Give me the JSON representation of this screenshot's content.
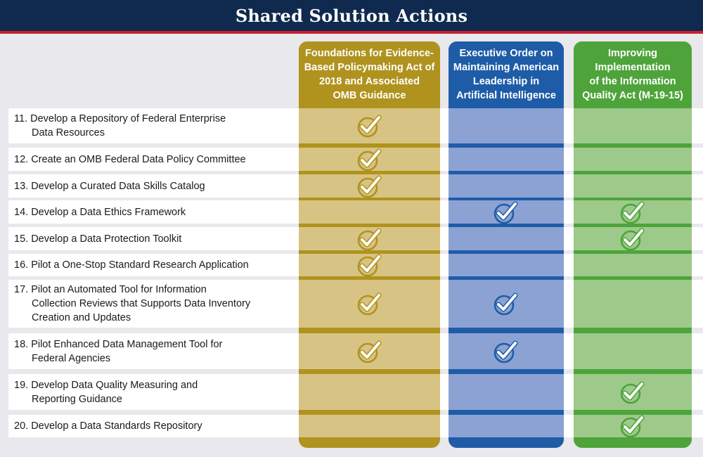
{
  "title": "Shared Solution Actions",
  "colors": {
    "header_bg": "#0f2a4e",
    "header_rule": "#c8202f",
    "page_bg": "#e9e8ec",
    "gold_dark": "#b0931e",
    "gold_light": "#d7c484",
    "blue_dark": "#1f5ca8",
    "blue_light": "#8ba2d3",
    "green_dark": "#4ea43a",
    "green_light": "#9dca8b"
  },
  "columns": [
    {
      "id": "evidence-act",
      "title": "Foundations for Evidence-Based Policymaking Act of 2018 and Associated OMB Guidance",
      "title_lines": [
        "Foundations for Evidence-",
        "Based Policymaking Act of",
        "2018 and Associated",
        "OMB Guidance"
      ]
    },
    {
      "id": "ai-eo",
      "title": "Executive Order on Maintaining American Leadership in Artificial Intelligence",
      "title_lines": [
        "Executive Order on",
        "Maintaining American",
        "Leadership in",
        "Artificial Intelligence"
      ]
    },
    {
      "id": "info-quality-act",
      "title": "Improving Implementation of the Information Quality Act (M-19-15)",
      "title_lines": [
        "Improving",
        "Implementation",
        "of the Information",
        "Quality Act (M-19-15)"
      ]
    }
  ],
  "rows": [
    {
      "number": "11.",
      "lines": [
        "Develop a Repository of Federal Enterprise",
        "Data Resources"
      ],
      "checks": [
        true,
        false,
        false
      ]
    },
    {
      "number": "12.",
      "lines": [
        "Create an OMB Federal Data Policy Committee"
      ],
      "checks": [
        true,
        false,
        false
      ]
    },
    {
      "number": "13.",
      "lines": [
        "Develop a Curated Data Skills Catalog"
      ],
      "checks": [
        true,
        false,
        false
      ]
    },
    {
      "number": "14.",
      "lines": [
        "Develop a Data Ethics Framework"
      ],
      "checks": [
        false,
        true,
        true
      ]
    },
    {
      "number": "15.",
      "lines": [
        "Develop a Data Protection Toolkit"
      ],
      "checks": [
        true,
        false,
        true
      ]
    },
    {
      "number": "16.",
      "lines": [
        "Pilot a One-Stop Standard Research Application"
      ],
      "checks": [
        true,
        false,
        false
      ]
    },
    {
      "number": "17.",
      "lines": [
        "Pilot an Automated Tool for Information",
        "Collection Reviews that Supports Data Inventory",
        "Creation and Updates"
      ],
      "checks": [
        true,
        true,
        false
      ]
    },
    {
      "number": "18.",
      "lines": [
        "Pilot Enhanced Data Management Tool for",
        "Federal Agencies"
      ],
      "checks": [
        true,
        true,
        false
      ]
    },
    {
      "number": "19.",
      "lines": [
        "Develop Data Quality Measuring and",
        "Reporting Guidance"
      ],
      "checks": [
        false,
        false,
        true
      ]
    },
    {
      "number": "20.",
      "lines": [
        "Develop a Data Standards Repository"
      ],
      "checks": [
        false,
        false,
        true
      ]
    }
  ]
}
